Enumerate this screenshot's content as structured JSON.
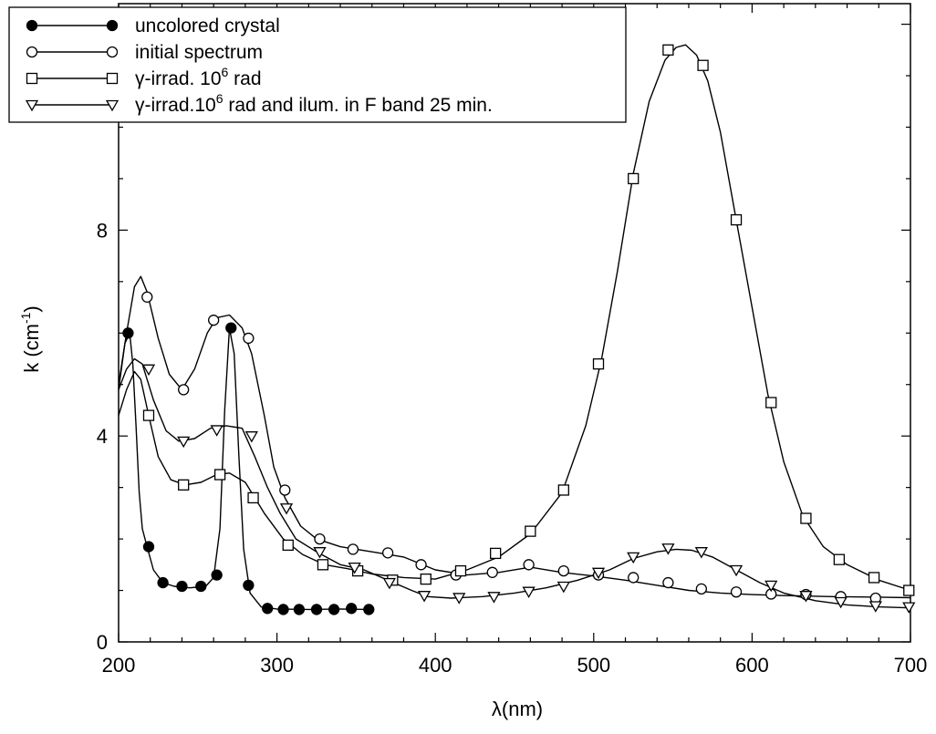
{
  "chart_data": {
    "type": "line",
    "xlabel_symbol": "λ",
    "xlabel_unit": "(nm)",
    "ylabel_main": "k (cm",
    "ylabel_sup": "-1",
    "ylabel_close": ")",
    "xlim": [
      200,
      700
    ],
    "ylim": [
      0,
      12.4
    ],
    "xticks": [
      200,
      300,
      400,
      500,
      600,
      700
    ],
    "yticks": [
      0,
      4,
      8
    ],
    "legend_position": "top-left",
    "series": [
      {
        "name_parts": [
          "uncolored crystal"
        ],
        "marker": "filled-circle",
        "curve": [
          [
            200,
            4.9
          ],
          [
            204,
            5.8
          ],
          [
            207,
            6.0
          ],
          [
            209,
            5.4
          ],
          [
            211,
            4.2
          ],
          [
            213,
            2.9
          ],
          [
            215,
            2.2
          ],
          [
            218,
            1.85
          ],
          [
            222,
            1.4
          ],
          [
            228,
            1.15
          ],
          [
            235,
            1.08
          ],
          [
            245,
            1.05
          ],
          [
            255,
            1.08
          ],
          [
            260,
            1.25
          ],
          [
            264,
            2.2
          ],
          [
            267,
            4.5
          ],
          [
            270,
            6.1
          ],
          [
            273,
            5.6
          ],
          [
            276,
            3.6
          ],
          [
            279,
            1.8
          ],
          [
            283,
            0.95
          ],
          [
            290,
            0.68
          ],
          [
            300,
            0.64
          ],
          [
            320,
            0.63
          ],
          [
            340,
            0.64
          ],
          [
            358,
            0.63
          ]
        ],
        "markers": [
          [
            206,
            6.0
          ],
          [
            219,
            1.85
          ],
          [
            228,
            1.15
          ],
          [
            240,
            1.08
          ],
          [
            252,
            1.08
          ],
          [
            262,
            1.3
          ],
          [
            271,
            6.1
          ],
          [
            282,
            1.1
          ],
          [
            294,
            0.65
          ],
          [
            304,
            0.63
          ],
          [
            314,
            0.63
          ],
          [
            325,
            0.63
          ],
          [
            336,
            0.63
          ],
          [
            347,
            0.65
          ],
          [
            358,
            0.63
          ]
        ]
      },
      {
        "name_parts": [
          "initial spectrum"
        ],
        "marker": "open-circle",
        "curve": [
          [
            200,
            5.0
          ],
          [
            205,
            6.0
          ],
          [
            210,
            6.9
          ],
          [
            214,
            7.1
          ],
          [
            218,
            6.8
          ],
          [
            225,
            5.9
          ],
          [
            232,
            5.2
          ],
          [
            240,
            4.9
          ],
          [
            248,
            5.3
          ],
          [
            256,
            6.0
          ],
          [
            262,
            6.3
          ],
          [
            270,
            6.35
          ],
          [
            278,
            6.1
          ],
          [
            284,
            5.6
          ],
          [
            292,
            4.4
          ],
          [
            298,
            3.4
          ],
          [
            305,
            2.8
          ],
          [
            315,
            2.25
          ],
          [
            325,
            2.0
          ],
          [
            340,
            1.85
          ],
          [
            360,
            1.75
          ],
          [
            380,
            1.65
          ],
          [
            400,
            1.4
          ],
          [
            420,
            1.3
          ],
          [
            440,
            1.35
          ],
          [
            460,
            1.45
          ],
          [
            480,
            1.35
          ],
          [
            500,
            1.28
          ],
          [
            520,
            1.2
          ],
          [
            540,
            1.1
          ],
          [
            560,
            1.0
          ],
          [
            580,
            0.95
          ],
          [
            600,
            0.92
          ],
          [
            620,
            0.9
          ],
          [
            650,
            0.88
          ],
          [
            680,
            0.87
          ],
          [
            700,
            0.86
          ]
        ],
        "markers": [
          [
            218,
            6.7
          ],
          [
            241,
            4.9
          ],
          [
            260,
            6.25
          ],
          [
            282,
            5.9
          ],
          [
            305,
            2.95
          ],
          [
            327,
            2.0
          ],
          [
            348,
            1.8
          ],
          [
            370,
            1.73
          ],
          [
            391,
            1.5
          ],
          [
            413,
            1.3
          ],
          [
            436,
            1.35
          ],
          [
            459,
            1.5
          ],
          [
            481,
            1.38
          ],
          [
            503,
            1.3
          ],
          [
            525,
            1.25
          ],
          [
            547,
            1.15
          ],
          [
            568,
            1.03
          ],
          [
            590,
            0.97
          ],
          [
            612,
            0.93
          ],
          [
            634,
            0.92
          ],
          [
            656,
            0.88
          ],
          [
            678,
            0.85
          ]
        ]
      },
      {
        "name_parts": [
          "γ-irrad. 10",
          "6",
          " rad"
        ],
        "marker": "open-square",
        "curve": [
          [
            200,
            4.4
          ],
          [
            205,
            4.9
          ],
          [
            210,
            5.25
          ],
          [
            214,
            5.1
          ],
          [
            219,
            4.4
          ],
          [
            225,
            3.6
          ],
          [
            233,
            3.15
          ],
          [
            242,
            3.05
          ],
          [
            252,
            3.1
          ],
          [
            262,
            3.25
          ],
          [
            270,
            3.28
          ],
          [
            280,
            3.1
          ],
          [
            292,
            2.5
          ],
          [
            304,
            2.0
          ],
          [
            316,
            1.7
          ],
          [
            330,
            1.5
          ],
          [
            345,
            1.42
          ],
          [
            360,
            1.32
          ],
          [
            380,
            1.25
          ],
          [
            400,
            1.22
          ],
          [
            420,
            1.4
          ],
          [
            440,
            1.65
          ],
          [
            460,
            2.1
          ],
          [
            480,
            2.9
          ],
          [
            495,
            4.2
          ],
          [
            505,
            5.5
          ],
          [
            515,
            7.2
          ],
          [
            525,
            9.1
          ],
          [
            535,
            10.5
          ],
          [
            545,
            11.3
          ],
          [
            552,
            11.55
          ],
          [
            558,
            11.6
          ],
          [
            565,
            11.4
          ],
          [
            572,
            10.9
          ],
          [
            580,
            9.9
          ],
          [
            590,
            8.2
          ],
          [
            600,
            6.5
          ],
          [
            610,
            4.8
          ],
          [
            620,
            3.5
          ],
          [
            632,
            2.45
          ],
          [
            645,
            1.85
          ],
          [
            660,
            1.5
          ],
          [
            680,
            1.2
          ],
          [
            700,
            1.0
          ]
        ],
        "markers": [
          [
            219,
            4.4
          ],
          [
            241,
            3.05
          ],
          [
            264,
            3.25
          ],
          [
            285,
            2.8
          ],
          [
            307,
            1.88
          ],
          [
            329,
            1.5
          ],
          [
            351,
            1.38
          ],
          [
            373,
            1.2
          ],
          [
            394,
            1.22
          ],
          [
            416,
            1.38
          ],
          [
            438,
            1.72
          ],
          [
            460,
            2.15
          ],
          [
            481,
            2.95
          ],
          [
            503,
            5.4
          ],
          [
            525,
            9.0
          ],
          [
            547,
            11.5
          ],
          [
            569,
            11.2
          ],
          [
            590,
            8.2
          ],
          [
            612,
            4.65
          ],
          [
            634,
            2.4
          ],
          [
            655,
            1.6
          ],
          [
            677,
            1.25
          ],
          [
            699,
            1.0
          ]
        ]
      },
      {
        "name_parts": [
          "γ-irrad.10",
          "6",
          " rad and ilum. in F band 25 min."
        ],
        "marker": "open-triangle-down",
        "curve": [
          [
            200,
            4.9
          ],
          [
            205,
            5.3
          ],
          [
            210,
            5.5
          ],
          [
            215,
            5.4
          ],
          [
            222,
            4.7
          ],
          [
            230,
            4.1
          ],
          [
            238,
            3.9
          ],
          [
            248,
            3.95
          ],
          [
            258,
            4.15
          ],
          [
            268,
            4.2
          ],
          [
            278,
            4.15
          ],
          [
            286,
            3.6
          ],
          [
            294,
            3.0
          ],
          [
            302,
            2.5
          ],
          [
            312,
            2.0
          ],
          [
            325,
            1.75
          ],
          [
            340,
            1.5
          ],
          [
            355,
            1.4
          ],
          [
            370,
            1.2
          ],
          [
            385,
            1.0
          ],
          [
            395,
            0.88
          ],
          [
            410,
            0.85
          ],
          [
            430,
            0.88
          ],
          [
            450,
            0.95
          ],
          [
            470,
            1.05
          ],
          [
            490,
            1.2
          ],
          [
            510,
            1.4
          ],
          [
            525,
            1.62
          ],
          [
            540,
            1.75
          ],
          [
            552,
            1.8
          ],
          [
            562,
            1.78
          ],
          [
            575,
            1.65
          ],
          [
            590,
            1.4
          ],
          [
            605,
            1.15
          ],
          [
            620,
            0.95
          ],
          [
            640,
            0.8
          ],
          [
            660,
            0.72
          ],
          [
            680,
            0.68
          ],
          [
            700,
            0.66
          ]
        ],
        "markers": [
          [
            219,
            5.3
          ],
          [
            241,
            3.9
          ],
          [
            262,
            4.12
          ],
          [
            284,
            4.0
          ],
          [
            306,
            2.6
          ],
          [
            327,
            1.75
          ],
          [
            349,
            1.45
          ],
          [
            371,
            1.15
          ],
          [
            393,
            0.9
          ],
          [
            415,
            0.86
          ],
          [
            437,
            0.88
          ],
          [
            459,
            0.98
          ],
          [
            481,
            1.08
          ],
          [
            503,
            1.35
          ],
          [
            525,
            1.65
          ],
          [
            547,
            1.82
          ],
          [
            568,
            1.75
          ],
          [
            590,
            1.4
          ],
          [
            612,
            1.1
          ],
          [
            634,
            0.9
          ],
          [
            656,
            0.78
          ],
          [
            678,
            0.7
          ],
          [
            699,
            0.68
          ]
        ]
      }
    ]
  }
}
